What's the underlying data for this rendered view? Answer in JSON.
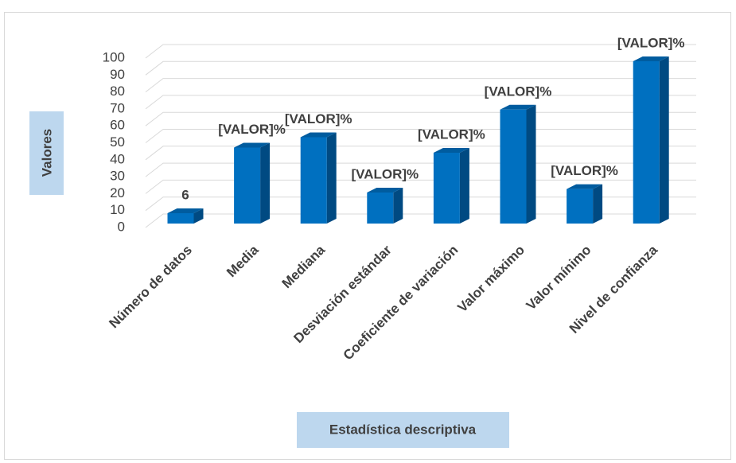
{
  "chart_data": {
    "type": "bar3d",
    "x_label": "Estadística descriptiva",
    "y_label": "Valores",
    "categories": [
      "Número de datos",
      "Media",
      "Mediana",
      "Desviación estándar",
      "Coeficiente de variación",
      "Valor máximo",
      "Valor mínimo",
      "Nivel de confianza"
    ],
    "values": [
      6,
      44,
      50,
      18,
      41,
      66,
      20,
      94
    ],
    "value_labels": [
      "6",
      "[VALOR]%",
      "[VALOR]%",
      "[VALOR]%",
      "[VALOR]%",
      "[VALOR]%",
      "[VALOR]%",
      "[VALOR]%"
    ],
    "color": "#0070c0",
    "ylim": [
      0,
      100
    ],
    "yticks": [
      0,
      10,
      20,
      30,
      40,
      50,
      60,
      70,
      80,
      90,
      100
    ],
    "grid": true
  }
}
